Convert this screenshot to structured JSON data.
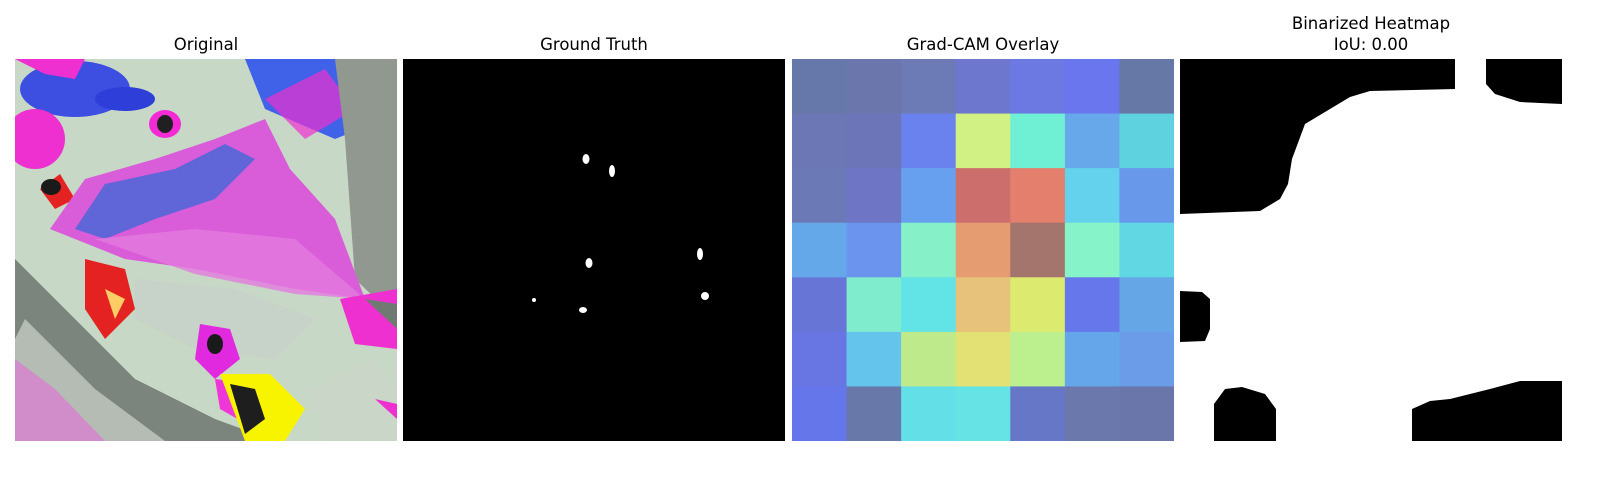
{
  "panels": [
    {
      "title": "Original"
    },
    {
      "title": "Ground Truth"
    },
    {
      "title": "Grad-CAM Overlay",
      "heatmap_grid": [
        [
          "#6677a9",
          "#6b76ad",
          "#6c7bb6",
          "#6d77cd",
          "#6d79e2",
          "#6a76ee",
          "#6678a6"
        ],
        [
          "#6b78b5",
          "#6c75b8",
          "#6a82ed",
          "#d1f185",
          "#6ff0d5",
          "#67a8ea",
          "#5fd2e0"
        ],
        [
          "#6b7ab7",
          "#6d75c4",
          "#67a0ee",
          "#cc6e6c",
          "#e37f6c",
          "#64d2ec",
          "#6798ea"
        ],
        [
          "#64a8ea",
          "#6a94ee",
          "#86f0c8",
          "#e59c70",
          "#a3756d",
          "#86f3c9",
          "#61d7e4"
        ],
        [
          "#6775d6",
          "#7fedcd",
          "#62e3e6",
          "#e6c27a",
          "#dceb70",
          "#6677eb",
          "#65a7e6"
        ],
        [
          "#6776e3",
          "#64c4eb",
          "#bfea8b",
          "#e4e174",
          "#bcf08f",
          "#65a6ea",
          "#6a9ce8"
        ],
        [
          "#6575ea",
          "#6778a9",
          "#63dfe8",
          "#66e3e5",
          "#6677c8",
          "#6a78ab",
          "#6a76a9"
        ]
      ]
    },
    {
      "title": "Binarized Heatmap",
      "subtitle": "IoU: 0.00"
    }
  ]
}
